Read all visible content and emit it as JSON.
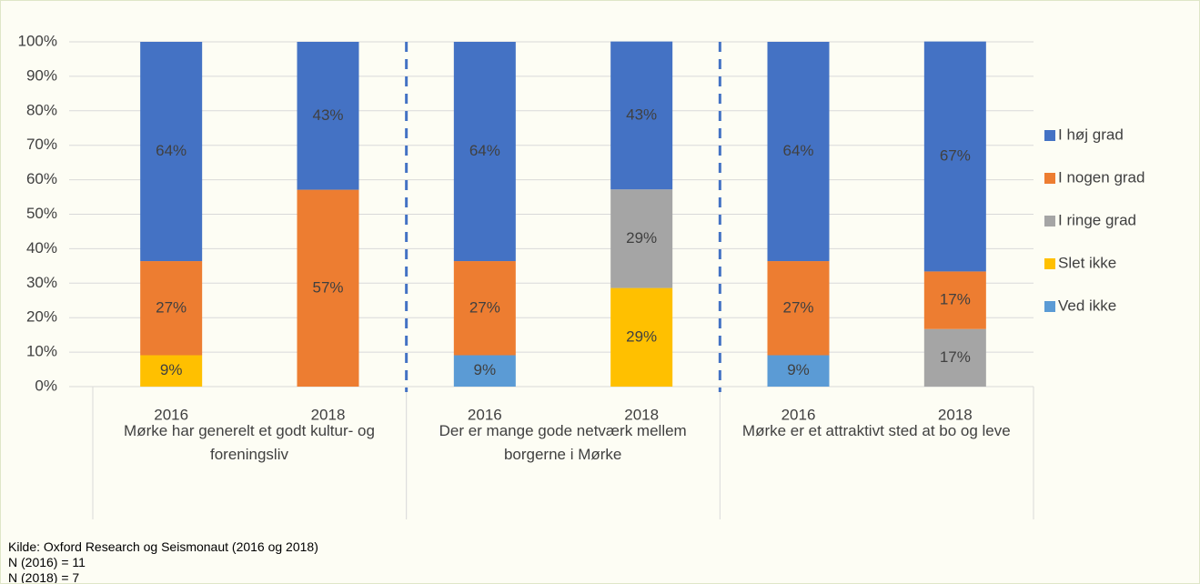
{
  "chart_data": {
    "type": "stacked_bar",
    "categories": [
      "2016",
      "2018",
      "2016",
      "2018",
      "2016",
      "2018"
    ],
    "groups": [
      "Mørke har generelt et godt kultur- og foreningsliv",
      "Der er mange gode netværk mellem borgerne i Mørke",
      "Mørke er et attraktivt sted at bo og leve"
    ],
    "series": [
      {
        "name": "I høj grad",
        "color": "#4472c4",
        "values": [
          63.6,
          42.9,
          63.6,
          42.9,
          63.6,
          66.7
        ],
        "value_labels": [
          "64%",
          "43%",
          "64%",
          "43%",
          "64%",
          "67%"
        ]
      },
      {
        "name": "I nogen grad",
        "color": "#ed7d31",
        "values": [
          27.3,
          57.1,
          27.3,
          null,
          27.3,
          16.7
        ],
        "value_labels": [
          "27%",
          "57%",
          "27%",
          null,
          "27%",
          "17%"
        ]
      },
      {
        "name": "I ringe grad",
        "color": "#a5a5a5",
        "values": [
          null,
          null,
          null,
          28.6,
          null,
          16.7
        ],
        "value_labels": [
          null,
          null,
          null,
          "29%",
          null,
          "17%"
        ]
      },
      {
        "name": "Slet ikke",
        "color": "#ffc000",
        "values": [
          9.1,
          null,
          null,
          28.6,
          null,
          null
        ],
        "value_labels": [
          "9%",
          null,
          null,
          "29%",
          null,
          null
        ]
      },
      {
        "name": "Ved ikke",
        "color": "#5b9bd5",
        "values": [
          null,
          null,
          9.1,
          null,
          9.1,
          null
        ],
        "value_labels": [
          null,
          null,
          "9%",
          null,
          "9%",
          null
        ]
      }
    ],
    "ylim": [
      0,
      100
    ],
    "yticks": [
      {
        "value": 0,
        "label": "0%"
      },
      {
        "value": 10,
        "label": "10%"
      },
      {
        "value": 20,
        "label": "20%"
      },
      {
        "value": 30,
        "label": "30%"
      },
      {
        "value": 40,
        "label": "40%"
      },
      {
        "value": 50,
        "label": "50%"
      },
      {
        "value": 60,
        "label": "60%"
      },
      {
        "value": 70,
        "label": "70%"
      },
      {
        "value": 80,
        "label": "80%"
      },
      {
        "value": 90,
        "label": "90%"
      },
      {
        "value": 100,
        "label": "100%"
      }
    ],
    "grid": true,
    "legend": "right"
  },
  "notes": [
    "Kilde: Oxford Research og Seismonaut (2016 og 2018)",
    "N (2016) = 11",
    "N (2018) = 7"
  ]
}
